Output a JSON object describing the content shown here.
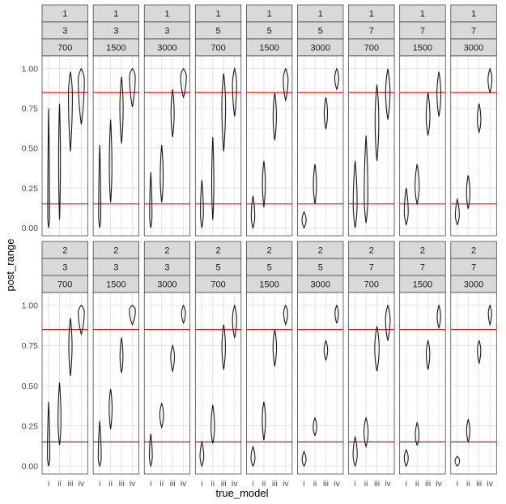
{
  "chart_data": {
    "type": "violin",
    "xlabel": "true_model",
    "ylabel": "post_range",
    "x_categories": [
      "i",
      "ii",
      "iii",
      "iv"
    ],
    "y_ticks": [
      "0.00",
      "0.25",
      "0.50",
      "0.75",
      "1.00"
    ],
    "ylim": [
      -0.05,
      1.08
    ],
    "reference_lines": [
      0.15,
      0.85
    ],
    "reference_color": "#ff0000",
    "grid": true,
    "facet_rows": [
      {
        "panels": [
          {
            "strips": [
              "1",
              "3",
              "700"
            ],
            "violins": [
              {
                "min": 0.0,
                "max": 0.75,
                "mode": 0.07,
                "width": 0.16
              },
              {
                "min": 0.05,
                "max": 0.78,
                "mode": 0.42,
                "width": 0.17
              },
              {
                "min": 0.48,
                "max": 0.98,
                "mode": 0.83,
                "width": 0.36
              },
              {
                "min": 0.65,
                "max": 1.0,
                "mode": 0.93,
                "width": 0.55
              }
            ]
          },
          {
            "strips": [
              "1",
              "3",
              "1500"
            ],
            "violins": [
              {
                "min": 0.0,
                "max": 0.52,
                "mode": 0.08,
                "width": 0.2
              },
              {
                "min": 0.16,
                "max": 0.68,
                "mode": 0.38,
                "width": 0.24
              },
              {
                "min": 0.53,
                "max": 0.95,
                "mode": 0.75,
                "width": 0.3
              },
              {
                "min": 0.76,
                "max": 1.0,
                "mode": 0.95,
                "width": 0.52
              }
            ]
          },
          {
            "strips": [
              "1",
              "3",
              "3000"
            ],
            "violins": [
              {
                "min": 0.0,
                "max": 0.35,
                "mode": 0.08,
                "width": 0.22
              },
              {
                "min": 0.16,
                "max": 0.52,
                "mode": 0.32,
                "width": 0.27
              },
              {
                "min": 0.57,
                "max": 0.87,
                "mode": 0.72,
                "width": 0.29
              },
              {
                "min": 0.82,
                "max": 1.0,
                "mode": 0.95,
                "width": 0.52
              }
            ]
          },
          {
            "strips": [
              "1",
              "5",
              "700"
            ],
            "violins": [
              {
                "min": 0.0,
                "max": 0.3,
                "mode": 0.1,
                "width": 0.27
              },
              {
                "min": 0.05,
                "max": 0.57,
                "mode": 0.28,
                "width": 0.2
              },
              {
                "min": 0.48,
                "max": 0.97,
                "mode": 0.77,
                "width": 0.34
              },
              {
                "min": 0.7,
                "max": 1.0,
                "mode": 0.9,
                "width": 0.38
              }
            ]
          },
          {
            "strips": [
              "1",
              "5",
              "1500"
            ],
            "violins": [
              {
                "min": 0.0,
                "max": 0.2,
                "mode": 0.07,
                "width": 0.32
              },
              {
                "min": 0.13,
                "max": 0.42,
                "mode": 0.28,
                "width": 0.27
              },
              {
                "min": 0.55,
                "max": 0.85,
                "mode": 0.7,
                "width": 0.3
              },
              {
                "min": 0.8,
                "max": 1.0,
                "mode": 0.93,
                "width": 0.44
              }
            ]
          },
          {
            "strips": [
              "1",
              "5",
              "3000"
            ],
            "violins": [
              {
                "min": 0.0,
                "max": 0.1,
                "mode": 0.05,
                "width": 0.38
              },
              {
                "min": 0.15,
                "max": 0.4,
                "mode": 0.27,
                "width": 0.29
              },
              {
                "min": 0.62,
                "max": 0.82,
                "mode": 0.72,
                "width": 0.3
              },
              {
                "min": 0.87,
                "max": 1.0,
                "mode": 0.94,
                "width": 0.36
              }
            ]
          },
          {
            "strips": [
              "1",
              "7",
              "700"
            ],
            "violins": [
              {
                "min": 0.0,
                "max": 0.42,
                "mode": 0.15,
                "width": 0.36
              },
              {
                "min": 0.03,
                "max": 0.58,
                "mode": 0.2,
                "width": 0.34
              },
              {
                "min": 0.42,
                "max": 0.9,
                "mode": 0.67,
                "width": 0.34
              },
              {
                "min": 0.68,
                "max": 1.0,
                "mode": 0.85,
                "width": 0.4
              }
            ]
          },
          {
            "strips": [
              "1",
              "7",
              "1500"
            ],
            "violins": [
              {
                "min": 0.02,
                "max": 0.25,
                "mode": 0.1,
                "width": 0.36
              },
              {
                "min": 0.15,
                "max": 0.4,
                "mode": 0.26,
                "width": 0.38
              },
              {
                "min": 0.58,
                "max": 0.85,
                "mode": 0.7,
                "width": 0.34
              },
              {
                "min": 0.7,
                "max": 0.98,
                "mode": 0.84,
                "width": 0.36
              }
            ]
          },
          {
            "strips": [
              "1",
              "7",
              "3000"
            ],
            "violins": [
              {
                "min": 0.02,
                "max": 0.18,
                "mode": 0.08,
                "width": 0.36
              },
              {
                "min": 0.12,
                "max": 0.33,
                "mode": 0.22,
                "width": 0.32
              },
              {
                "min": 0.6,
                "max": 0.78,
                "mode": 0.68,
                "width": 0.32
              },
              {
                "min": 0.85,
                "max": 1.0,
                "mode": 0.93,
                "width": 0.36
              }
            ]
          }
        ]
      },
      {
        "panels": [
          {
            "strips": [
              "2",
              "3",
              "700"
            ],
            "violins": [
              {
                "min": 0.0,
                "max": 0.4,
                "mode": 0.06,
                "width": 0.22
              },
              {
                "min": 0.13,
                "max": 0.52,
                "mode": 0.28,
                "width": 0.27
              },
              {
                "min": 0.56,
                "max": 0.92,
                "mode": 0.75,
                "width": 0.3
              },
              {
                "min": 0.82,
                "max": 1.0,
                "mode": 0.96,
                "width": 0.55
              }
            ]
          },
          {
            "strips": [
              "2",
              "3",
              "1500"
            ],
            "violins": [
              {
                "min": 0.0,
                "max": 0.28,
                "mode": 0.05,
                "width": 0.27
              },
              {
                "min": 0.23,
                "max": 0.48,
                "mode": 0.36,
                "width": 0.27
              },
              {
                "min": 0.58,
                "max": 0.8,
                "mode": 0.68,
                "width": 0.27
              },
              {
                "min": 0.88,
                "max": 1.0,
                "mode": 0.97,
                "width": 0.55
              }
            ]
          },
          {
            "strips": [
              "2",
              "3",
              "3000"
            ],
            "violins": [
              {
                "min": 0.0,
                "max": 0.2,
                "mode": 0.06,
                "width": 0.27
              },
              {
                "min": 0.24,
                "max": 0.39,
                "mode": 0.32,
                "width": 0.34
              },
              {
                "min": 0.59,
                "max": 0.75,
                "mode": 0.68,
                "width": 0.34
              },
              {
                "min": 0.89,
                "max": 1.0,
                "mode": 0.95,
                "width": 0.36
              }
            ]
          },
          {
            "strips": [
              "2",
              "5",
              "700"
            ],
            "violins": [
              {
                "min": 0.0,
                "max": 0.15,
                "mode": 0.06,
                "width": 0.34
              },
              {
                "min": 0.14,
                "max": 0.38,
                "mode": 0.24,
                "width": 0.32
              },
              {
                "min": 0.6,
                "max": 0.88,
                "mode": 0.74,
                "width": 0.32
              },
              {
                "min": 0.8,
                "max": 1.0,
                "mode": 0.91,
                "width": 0.38
              }
            ]
          },
          {
            "strips": [
              "2",
              "5",
              "1500"
            ],
            "violins": [
              {
                "min": 0.0,
                "max": 0.12,
                "mode": 0.05,
                "width": 0.36
              },
              {
                "min": 0.16,
                "max": 0.4,
                "mode": 0.29,
                "width": 0.3
              },
              {
                "min": 0.62,
                "max": 0.85,
                "mode": 0.74,
                "width": 0.32
              },
              {
                "min": 0.88,
                "max": 1.0,
                "mode": 0.95,
                "width": 0.36
              }
            ]
          },
          {
            "strips": [
              "2",
              "5",
              "3000"
            ],
            "violins": [
              {
                "min": 0.0,
                "max": 0.09,
                "mode": 0.04,
                "width": 0.36
              },
              {
                "min": 0.19,
                "max": 0.3,
                "mode": 0.24,
                "width": 0.32
              },
              {
                "min": 0.66,
                "max": 0.78,
                "mode": 0.72,
                "width": 0.32
              },
              {
                "min": 0.89,
                "max": 1.0,
                "mode": 0.95,
                "width": 0.32
              }
            ]
          },
          {
            "strips": [
              "2",
              "7",
              "700"
            ],
            "violins": [
              {
                "min": 0.0,
                "max": 0.18,
                "mode": 0.07,
                "width": 0.38
              },
              {
                "min": 0.12,
                "max": 0.3,
                "mode": 0.21,
                "width": 0.38
              },
              {
                "min": 0.59,
                "max": 0.87,
                "mode": 0.73,
                "width": 0.4
              },
              {
                "min": 0.78,
                "max": 1.0,
                "mode": 0.91,
                "width": 0.42
              }
            ]
          },
          {
            "strips": [
              "2",
              "7",
              "1500"
            ],
            "violins": [
              {
                "min": 0.0,
                "max": 0.1,
                "mode": 0.05,
                "width": 0.36
              },
              {
                "min": 0.13,
                "max": 0.27,
                "mode": 0.19,
                "width": 0.34
              },
              {
                "min": 0.6,
                "max": 0.78,
                "mode": 0.7,
                "width": 0.32
              },
              {
                "min": 0.86,
                "max": 1.0,
                "mode": 0.93,
                "width": 0.32
              }
            ]
          },
          {
            "strips": [
              "2",
              "7",
              "3000"
            ],
            "violins": [
              {
                "min": 0.0,
                "max": 0.06,
                "mode": 0.03,
                "width": 0.42
              },
              {
                "min": 0.15,
                "max": 0.29,
                "mode": 0.22,
                "width": 0.3
              },
              {
                "min": 0.64,
                "max": 0.78,
                "mode": 0.72,
                "width": 0.3
              },
              {
                "min": 0.88,
                "max": 1.0,
                "mode": 0.95,
                "width": 0.3
              }
            ]
          }
        ]
      }
    ]
  }
}
